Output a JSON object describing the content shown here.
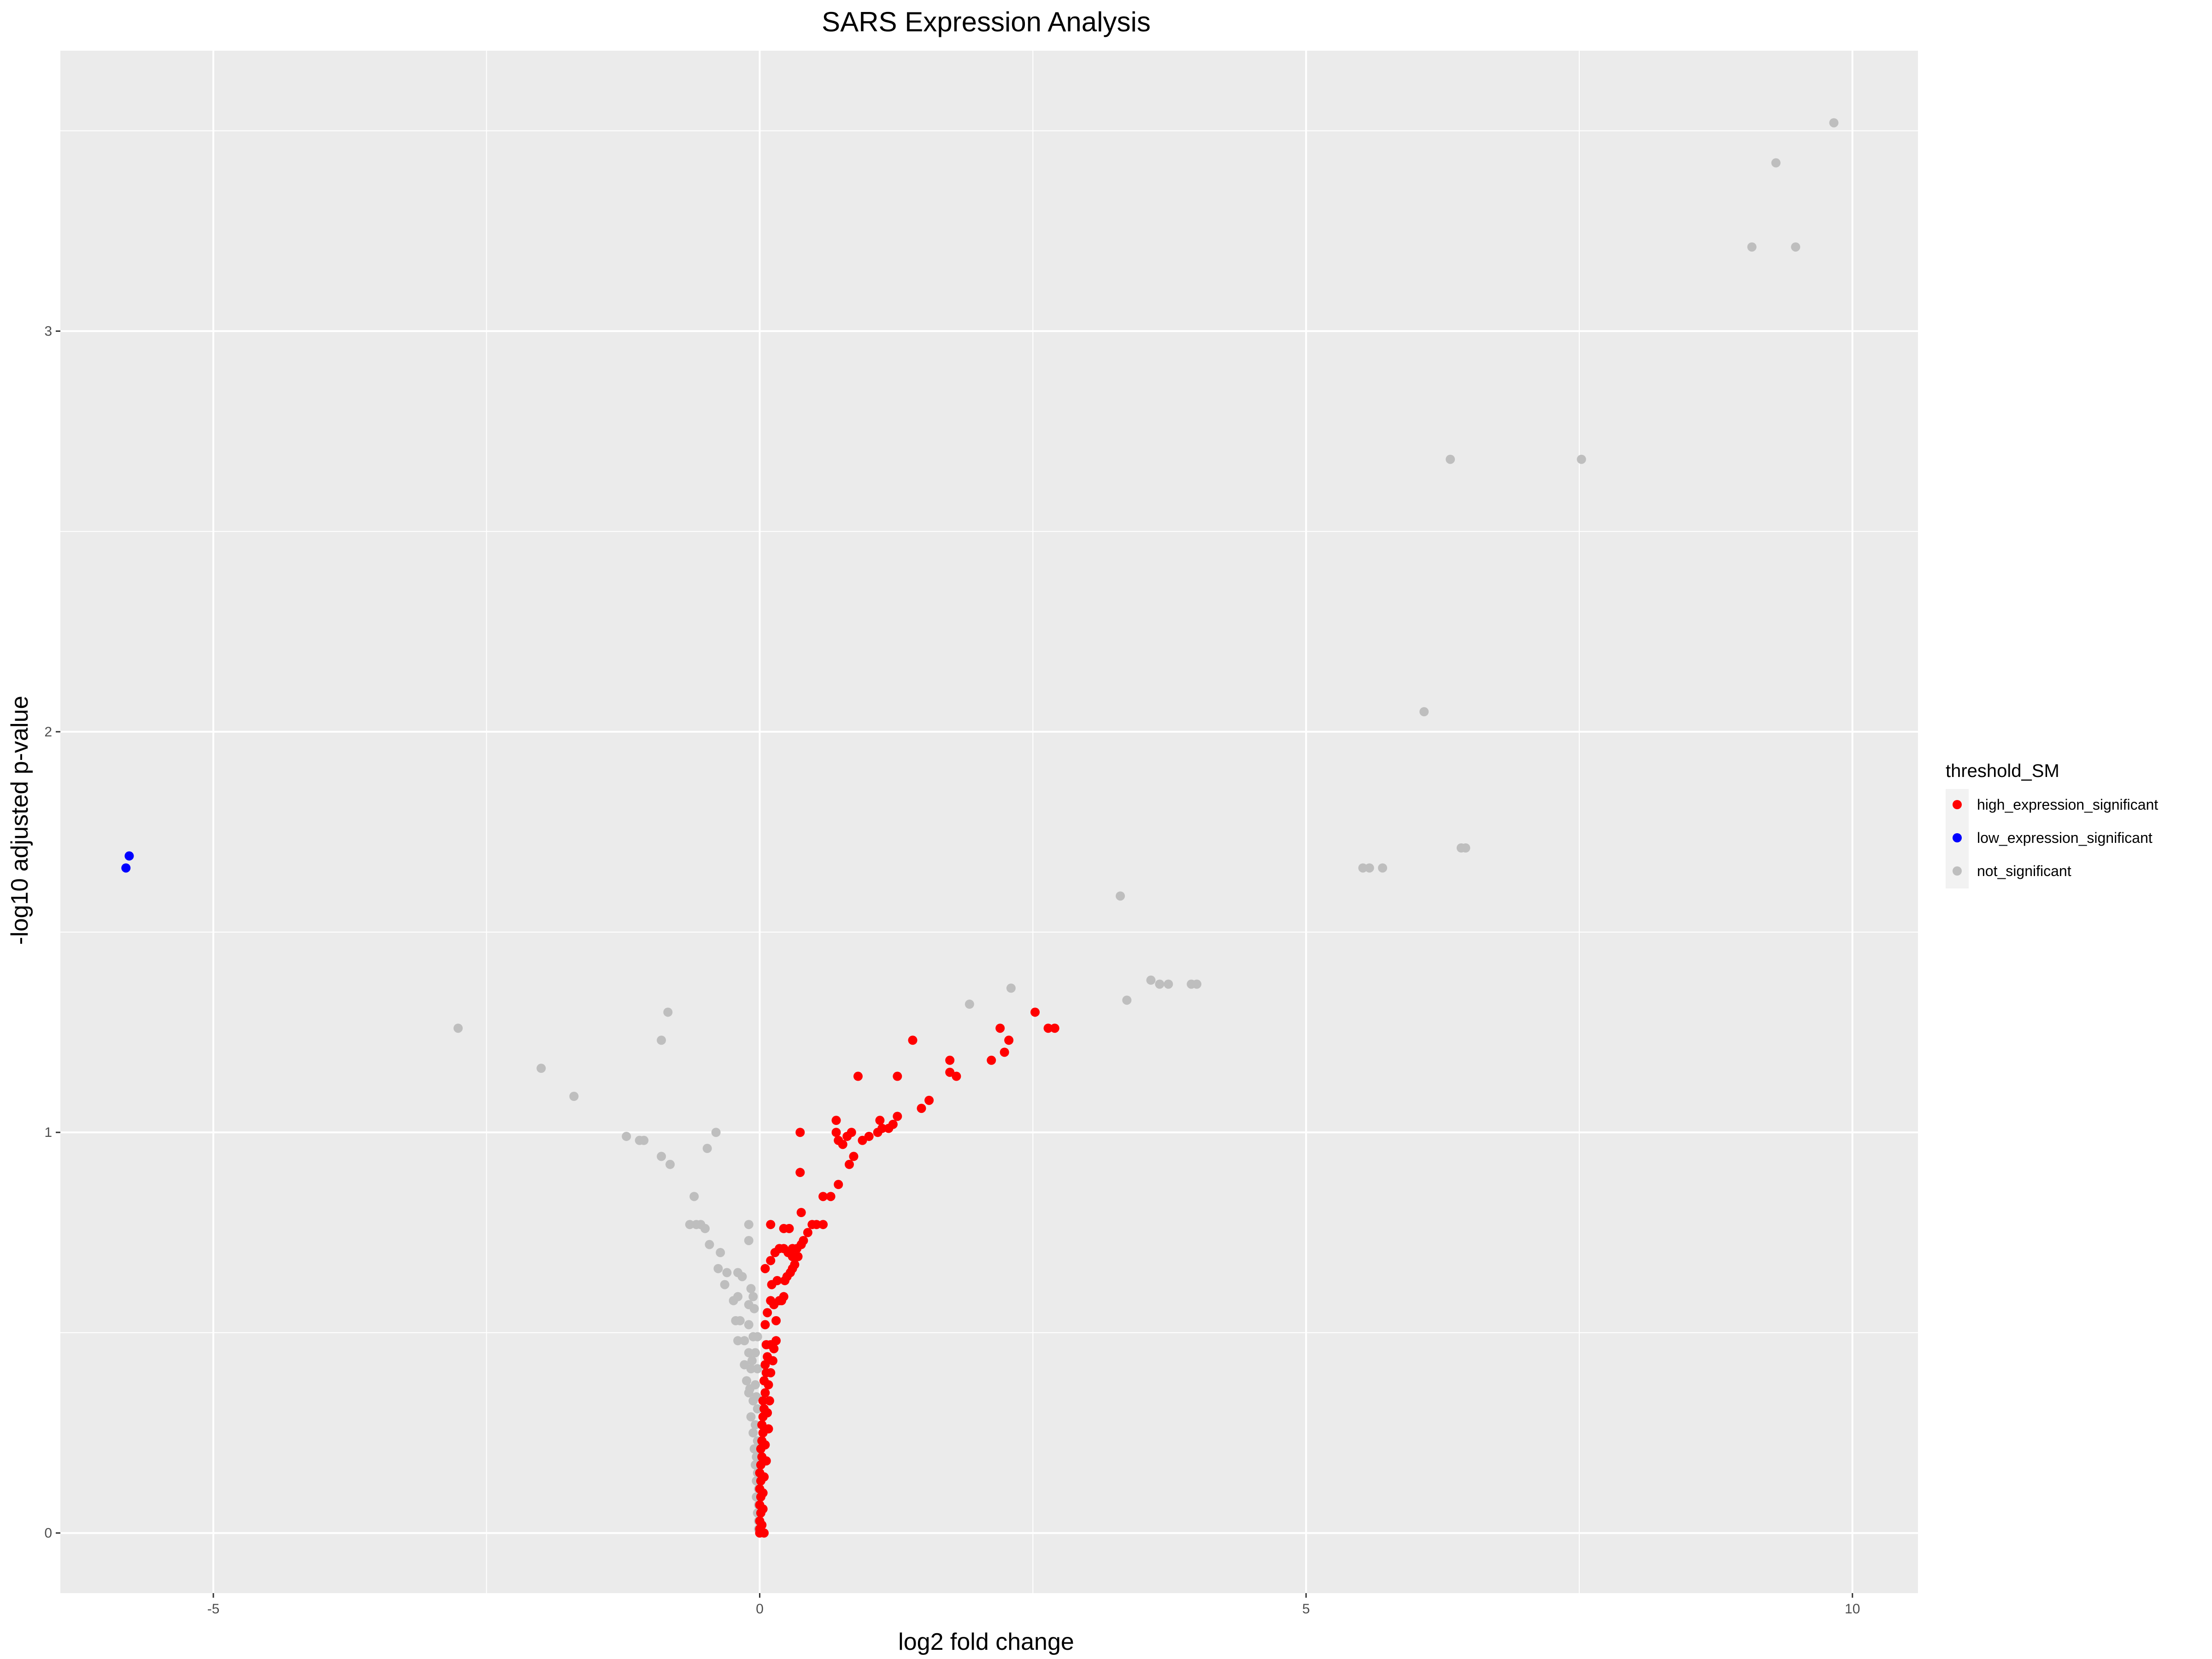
{
  "chart_data": {
    "type": "scatter",
    "title": "SARS Expression Analysis",
    "xlabel": "log2 fold change",
    "ylabel": "-log10 adjusted p-value",
    "xlim": [
      -6.4,
      10.6
    ],
    "ylim": [
      -0.15,
      3.7
    ],
    "x_ticks": [
      -5,
      0,
      5,
      10
    ],
    "x_tick_labels": [
      "-5",
      "0",
      "5",
      "10"
    ],
    "y_ticks": [
      0,
      1,
      2,
      3
    ],
    "y_tick_labels": [
      "0",
      "1",
      "2",
      "3"
    ],
    "grid": true,
    "panel_background": "#ebebeb",
    "legend": {
      "title": "threshold_SM",
      "position": "right"
    },
    "series": [
      {
        "name": "high_expression_significant",
        "color": "#ff0000",
        "points": [
          [
            0.0,
            0.0
          ],
          [
            0.0,
            0.01
          ],
          [
            0.0,
            0.03
          ],
          [
            0.01,
            0.05
          ],
          [
            0.0,
            0.07
          ],
          [
            0.01,
            0.09
          ],
          [
            0.0,
            0.11
          ],
          [
            0.01,
            0.13
          ],
          [
            0.0,
            0.15
          ],
          [
            0.01,
            0.17
          ],
          [
            0.02,
            0.19
          ],
          [
            0.01,
            0.21
          ],
          [
            0.02,
            0.23
          ],
          [
            0.03,
            0.25
          ],
          [
            0.02,
            0.27
          ],
          [
            0.03,
            0.29
          ],
          [
            0.04,
            0.31
          ],
          [
            0.03,
            0.33
          ],
          [
            0.05,
            0.35
          ],
          [
            0.04,
            0.38
          ],
          [
            0.06,
            0.4
          ],
          [
            0.05,
            0.42
          ],
          [
            0.07,
            0.44
          ],
          [
            0.06,
            0.47
          ],
          [
            0.1,
            0.47
          ],
          [
            0.13,
            0.46
          ],
          [
            0.15,
            0.48
          ],
          [
            0.12,
            0.43
          ],
          [
            0.1,
            0.4
          ],
          [
            0.08,
            0.37
          ],
          [
            0.09,
            0.33
          ],
          [
            0.07,
            0.3
          ],
          [
            0.08,
            0.26
          ],
          [
            0.05,
            0.22
          ],
          [
            0.06,
            0.18
          ],
          [
            0.04,
            0.14
          ],
          [
            0.03,
            0.1
          ],
          [
            0.03,
            0.06
          ],
          [
            0.02,
            0.02
          ],
          [
            0.04,
            0.0
          ],
          [
            0.05,
            0.52
          ],
          [
            0.07,
            0.55
          ],
          [
            0.1,
            0.58
          ],
          [
            0.13,
            0.57
          ],
          [
            0.15,
            0.53
          ],
          [
            0.18,
            0.58
          ],
          [
            0.2,
            0.58
          ],
          [
            0.22,
            0.59
          ],
          [
            0.11,
            0.62
          ],
          [
            0.16,
            0.63
          ],
          [
            0.23,
            0.63
          ],
          [
            0.25,
            0.64
          ],
          [
            0.28,
            0.65
          ],
          [
            0.3,
            0.66
          ],
          [
            0.32,
            0.67
          ],
          [
            0.05,
            0.66
          ],
          [
            0.1,
            0.68
          ],
          [
            0.14,
            0.7
          ],
          [
            0.18,
            0.71
          ],
          [
            0.22,
            0.71
          ],
          [
            0.26,
            0.7
          ],
          [
            0.3,
            0.71
          ],
          [
            0.34,
            0.71
          ],
          [
            0.38,
            0.72
          ],
          [
            0.3,
            0.69
          ],
          [
            0.35,
            0.69
          ],
          [
            0.4,
            0.73
          ],
          [
            0.44,
            0.75
          ],
          [
            0.48,
            0.77
          ],
          [
            0.52,
            0.77
          ],
          [
            0.58,
            0.77
          ],
          [
            0.22,
            0.76
          ],
          [
            0.27,
            0.76
          ],
          [
            0.1,
            0.77
          ],
          [
            0.38,
            0.8
          ],
          [
            0.58,
            0.84
          ],
          [
            0.65,
            0.84
          ],
          [
            0.72,
            0.87
          ],
          [
            0.37,
            0.9
          ],
          [
            0.82,
            0.92
          ],
          [
            0.86,
            0.94
          ],
          [
            0.72,
            0.98
          ],
          [
            0.76,
            0.97
          ],
          [
            0.8,
            0.99
          ],
          [
            0.84,
            1.0
          ],
          [
            0.7,
            1.0
          ],
          [
            0.7,
            1.03
          ],
          [
            0.37,
            1.0
          ],
          [
            0.94,
            0.98
          ],
          [
            1.0,
            0.99
          ],
          [
            1.08,
            1.0
          ],
          [
            1.12,
            1.01
          ],
          [
            1.18,
            1.01
          ],
          [
            1.22,
            1.02
          ],
          [
            1.26,
            1.04
          ],
          [
            1.1,
            1.03
          ],
          [
            1.48,
            1.06
          ],
          [
            1.55,
            1.08
          ],
          [
            1.74,
            1.15
          ],
          [
            1.8,
            1.14
          ],
          [
            1.74,
            1.18
          ],
          [
            2.12,
            1.18
          ],
          [
            2.24,
            1.2
          ],
          [
            2.28,
            1.23
          ],
          [
            2.2,
            1.26
          ],
          [
            2.52,
            1.3
          ],
          [
            2.64,
            1.26
          ],
          [
            2.7,
            1.26
          ],
          [
            1.4,
            1.23
          ],
          [
            1.26,
            1.14
          ],
          [
            0.9,
            1.14
          ]
        ]
      },
      {
        "name": "low_expression_significant",
        "color": "#0000ff",
        "points": [
          [
            -5.77,
            1.69
          ],
          [
            -5.8,
            1.66
          ]
        ]
      },
      {
        "name": "not_significant",
        "color": "#bebebe",
        "points": [
          [
            9.83,
            3.52
          ],
          [
            9.3,
            3.42
          ],
          [
            9.08,
            3.21
          ],
          [
            9.48,
            3.21
          ],
          [
            6.32,
            2.68
          ],
          [
            7.52,
            2.68
          ],
          [
            6.08,
            2.05
          ],
          [
            6.42,
            1.71
          ],
          [
            6.46,
            1.71
          ],
          [
            5.52,
            1.66
          ],
          [
            5.58,
            1.66
          ],
          [
            5.7,
            1.66
          ],
          [
            3.3,
            1.59
          ],
          [
            3.58,
            1.38
          ],
          [
            3.66,
            1.37
          ],
          [
            3.74,
            1.37
          ],
          [
            3.95,
            1.37
          ],
          [
            4.0,
            1.37
          ],
          [
            3.36,
            1.33
          ],
          [
            2.3,
            1.36
          ],
          [
            1.92,
            1.32
          ],
          [
            -2.76,
            1.26
          ],
          [
            -2.0,
            1.16
          ],
          [
            -1.7,
            1.09
          ],
          [
            -0.84,
            1.3
          ],
          [
            -0.9,
            1.23
          ],
          [
            -1.22,
            0.99
          ],
          [
            -1.1,
            0.98
          ],
          [
            -1.06,
            0.98
          ],
          [
            -0.9,
            0.94
          ],
          [
            -0.82,
            0.92
          ],
          [
            -0.4,
            1.0
          ],
          [
            -0.48,
            0.96
          ],
          [
            -0.6,
            0.84
          ],
          [
            -0.64,
            0.77
          ],
          [
            -0.58,
            0.77
          ],
          [
            -0.54,
            0.77
          ],
          [
            -0.5,
            0.76
          ],
          [
            -0.46,
            0.72
          ],
          [
            -0.36,
            0.7
          ],
          [
            -0.1,
            0.77
          ],
          [
            -0.1,
            0.73
          ],
          [
            -0.38,
            0.66
          ],
          [
            -0.3,
            0.65
          ],
          [
            -0.2,
            0.65
          ],
          [
            -0.16,
            0.64
          ],
          [
            -0.32,
            0.62
          ],
          [
            -0.08,
            0.61
          ],
          [
            -0.06,
            0.59
          ],
          [
            -0.24,
            0.58
          ],
          [
            -0.2,
            0.59
          ],
          [
            -0.1,
            0.57
          ],
          [
            -0.05,
            0.56
          ],
          [
            -0.22,
            0.53
          ],
          [
            -0.18,
            0.53
          ],
          [
            -0.1,
            0.52
          ],
          [
            -0.2,
            0.48
          ],
          [
            -0.14,
            0.48
          ],
          [
            -0.06,
            0.49
          ],
          [
            -0.02,
            0.49
          ],
          [
            -0.1,
            0.45
          ],
          [
            -0.04,
            0.45
          ],
          [
            -0.14,
            0.42
          ],
          [
            -0.08,
            0.41
          ],
          [
            -0.02,
            0.41
          ],
          [
            -0.12,
            0.38
          ],
          [
            -0.04,
            0.37
          ],
          [
            -0.1,
            0.35
          ],
          [
            -0.06,
            0.33
          ],
          [
            -0.02,
            0.31
          ],
          [
            -0.08,
            0.29
          ],
          [
            -0.04,
            0.27
          ],
          [
            -0.06,
            0.25
          ],
          [
            -0.02,
            0.23
          ],
          [
            -0.05,
            0.21
          ],
          [
            -0.03,
            0.19
          ],
          [
            -0.04,
            0.17
          ],
          [
            -0.02,
            0.15
          ],
          [
            -0.03,
            0.13
          ],
          [
            -0.01,
            0.11
          ],
          [
            -0.03,
            0.09
          ],
          [
            -0.01,
            0.07
          ],
          [
            -0.02,
            0.05
          ],
          [
            -0.01,
            0.03
          ],
          [
            -0.01,
            0.01
          ],
          [
            -0.07,
            0.43
          ],
          [
            -0.09,
            0.36
          ],
          [
            -0.03,
            0.34
          ]
        ]
      }
    ]
  }
}
